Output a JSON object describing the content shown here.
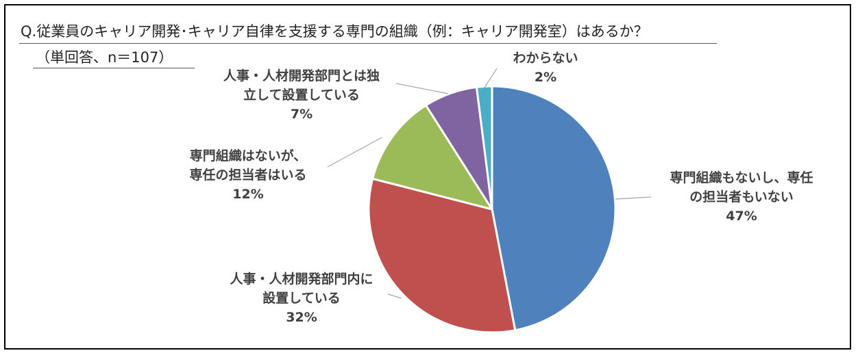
{
  "header": {
    "title": "Q.従業員のキャリア開発･キャリア自律を支援する専門の組織（例：キャリア開発室）はあるか？",
    "subtitle": "（単回答、n＝107）"
  },
  "chart_data": {
    "type": "pie",
    "title": "Q.従業員のキャリア開発･キャリア自律を支援する専門の組織（例：キャリア開発室）はあるか？",
    "subtitle": "（単回答、n＝107）",
    "slices": [
      {
        "label_lines": [
          "専門組織もないし、専任",
          "の担当者もいない"
        ],
        "value": 47,
        "value_label": "47%",
        "color": "#4F81BD"
      },
      {
        "label_lines": [
          "人事・人材開発部門内に",
          "設置している"
        ],
        "value": 32,
        "value_label": "32%",
        "color": "#C0504D"
      },
      {
        "label_lines": [
          "専門組織はないが、",
          "専任の担当者はいる"
        ],
        "value": 12,
        "value_label": "12%",
        "color": "#9BBB59"
      },
      {
        "label_lines": [
          "人事・人材開発部門とは独",
          "立して設置している"
        ],
        "value": 7,
        "value_label": "7%",
        "color": "#8064A2"
      },
      {
        "label_lines": [
          "わからない"
        ],
        "value": 2,
        "value_label": "2%",
        "color": "#4BACC6"
      }
    ],
    "start": "12 o'clock",
    "direction": "clockwise"
  }
}
